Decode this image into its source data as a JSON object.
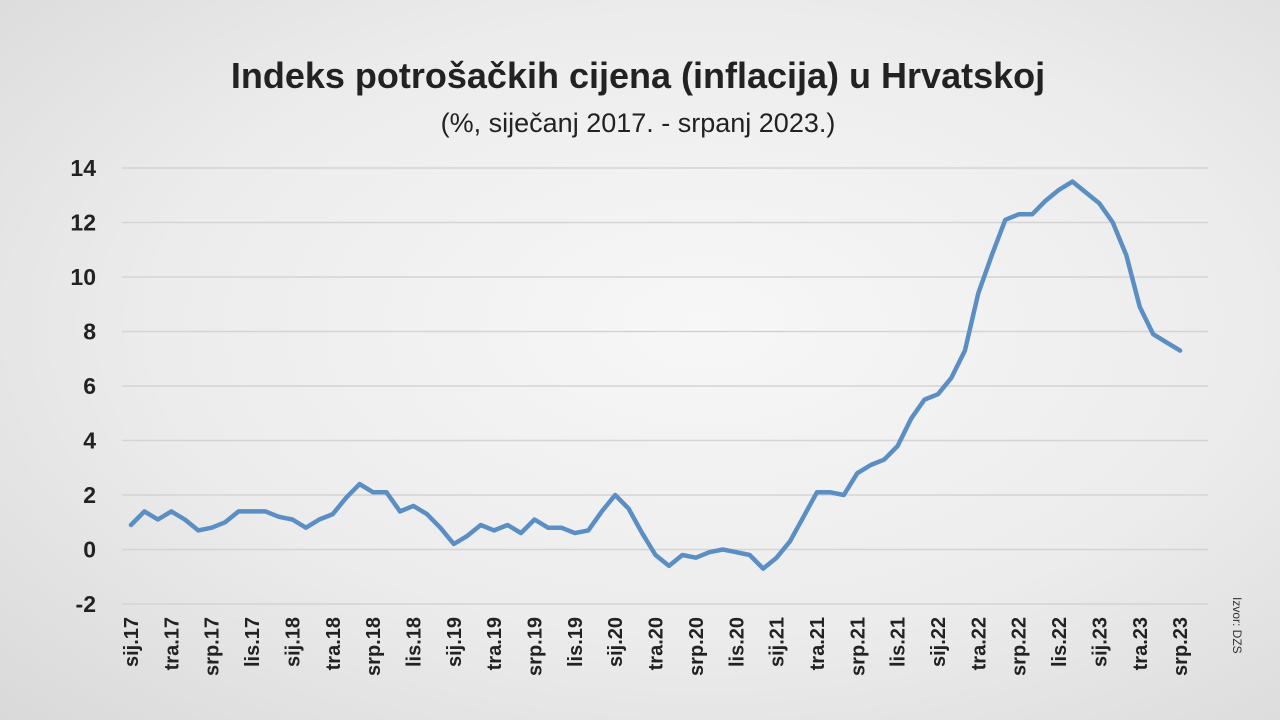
{
  "colors": {
    "series": "#5b8fc4",
    "grid": "#d4d4d4",
    "text": "#222222"
  },
  "source": "Izvor: DZS",
  "chart_data": {
    "type": "line",
    "title": "Indeks potrošačkih cijena (inflacija) u Hrvatskoj",
    "subtitle": "(%, siječanj 2017. - srpanj 2023.)",
    "xlabel": "",
    "ylabel": "",
    "ylim": [
      -2,
      14
    ],
    "yticks": [
      -2,
      0,
      2,
      4,
      6,
      8,
      10,
      12,
      14
    ],
    "grid": true,
    "x_tick_labels": [
      "sij.17",
      "tra.17",
      "srp.17",
      "lis.17",
      "sij.18",
      "tra.18",
      "srp.18",
      "lis.18",
      "sij.19",
      "tra.19",
      "srp.19",
      "lis.19",
      "sij.20",
      "tra.20",
      "srp.20",
      "lis.20",
      "sij.21",
      "tra.21",
      "srp.21",
      "lis.21",
      "sij.22",
      "tra.22",
      "srp.22",
      "lis.22",
      "sij.23",
      "tra.23",
      "srp.23"
    ],
    "series": [
      {
        "values": [
          0.9,
          1.4,
          1.1,
          1.4,
          1.1,
          0.7,
          0.8,
          1.0,
          1.4,
          1.4,
          1.4,
          1.2,
          1.1,
          0.8,
          1.1,
          1.3,
          1.9,
          2.4,
          2.1,
          2.1,
          1.4,
          1.6,
          1.3,
          0.8,
          0.2,
          0.5,
          0.9,
          0.7,
          0.9,
          0.6,
          1.1,
          0.8,
          0.8,
          0.6,
          0.7,
          1.4,
          2.0,
          1.5,
          0.6,
          -0.2,
          -0.6,
          -0.2,
          -0.3,
          -0.1,
          0.0,
          -0.1,
          -0.2,
          -0.7,
          -0.3,
          0.3,
          1.2,
          2.1,
          2.1,
          2.0,
          2.8,
          3.1,
          3.3,
          3.8,
          4.8,
          5.5,
          5.7,
          6.3,
          7.3,
          9.4,
          10.8,
          12.1,
          12.3,
          12.3,
          12.8,
          13.2,
          13.5,
          13.1,
          12.7,
          12.0,
          10.8,
          8.9,
          7.9,
          7.6,
          7.3
        ]
      }
    ]
  }
}
